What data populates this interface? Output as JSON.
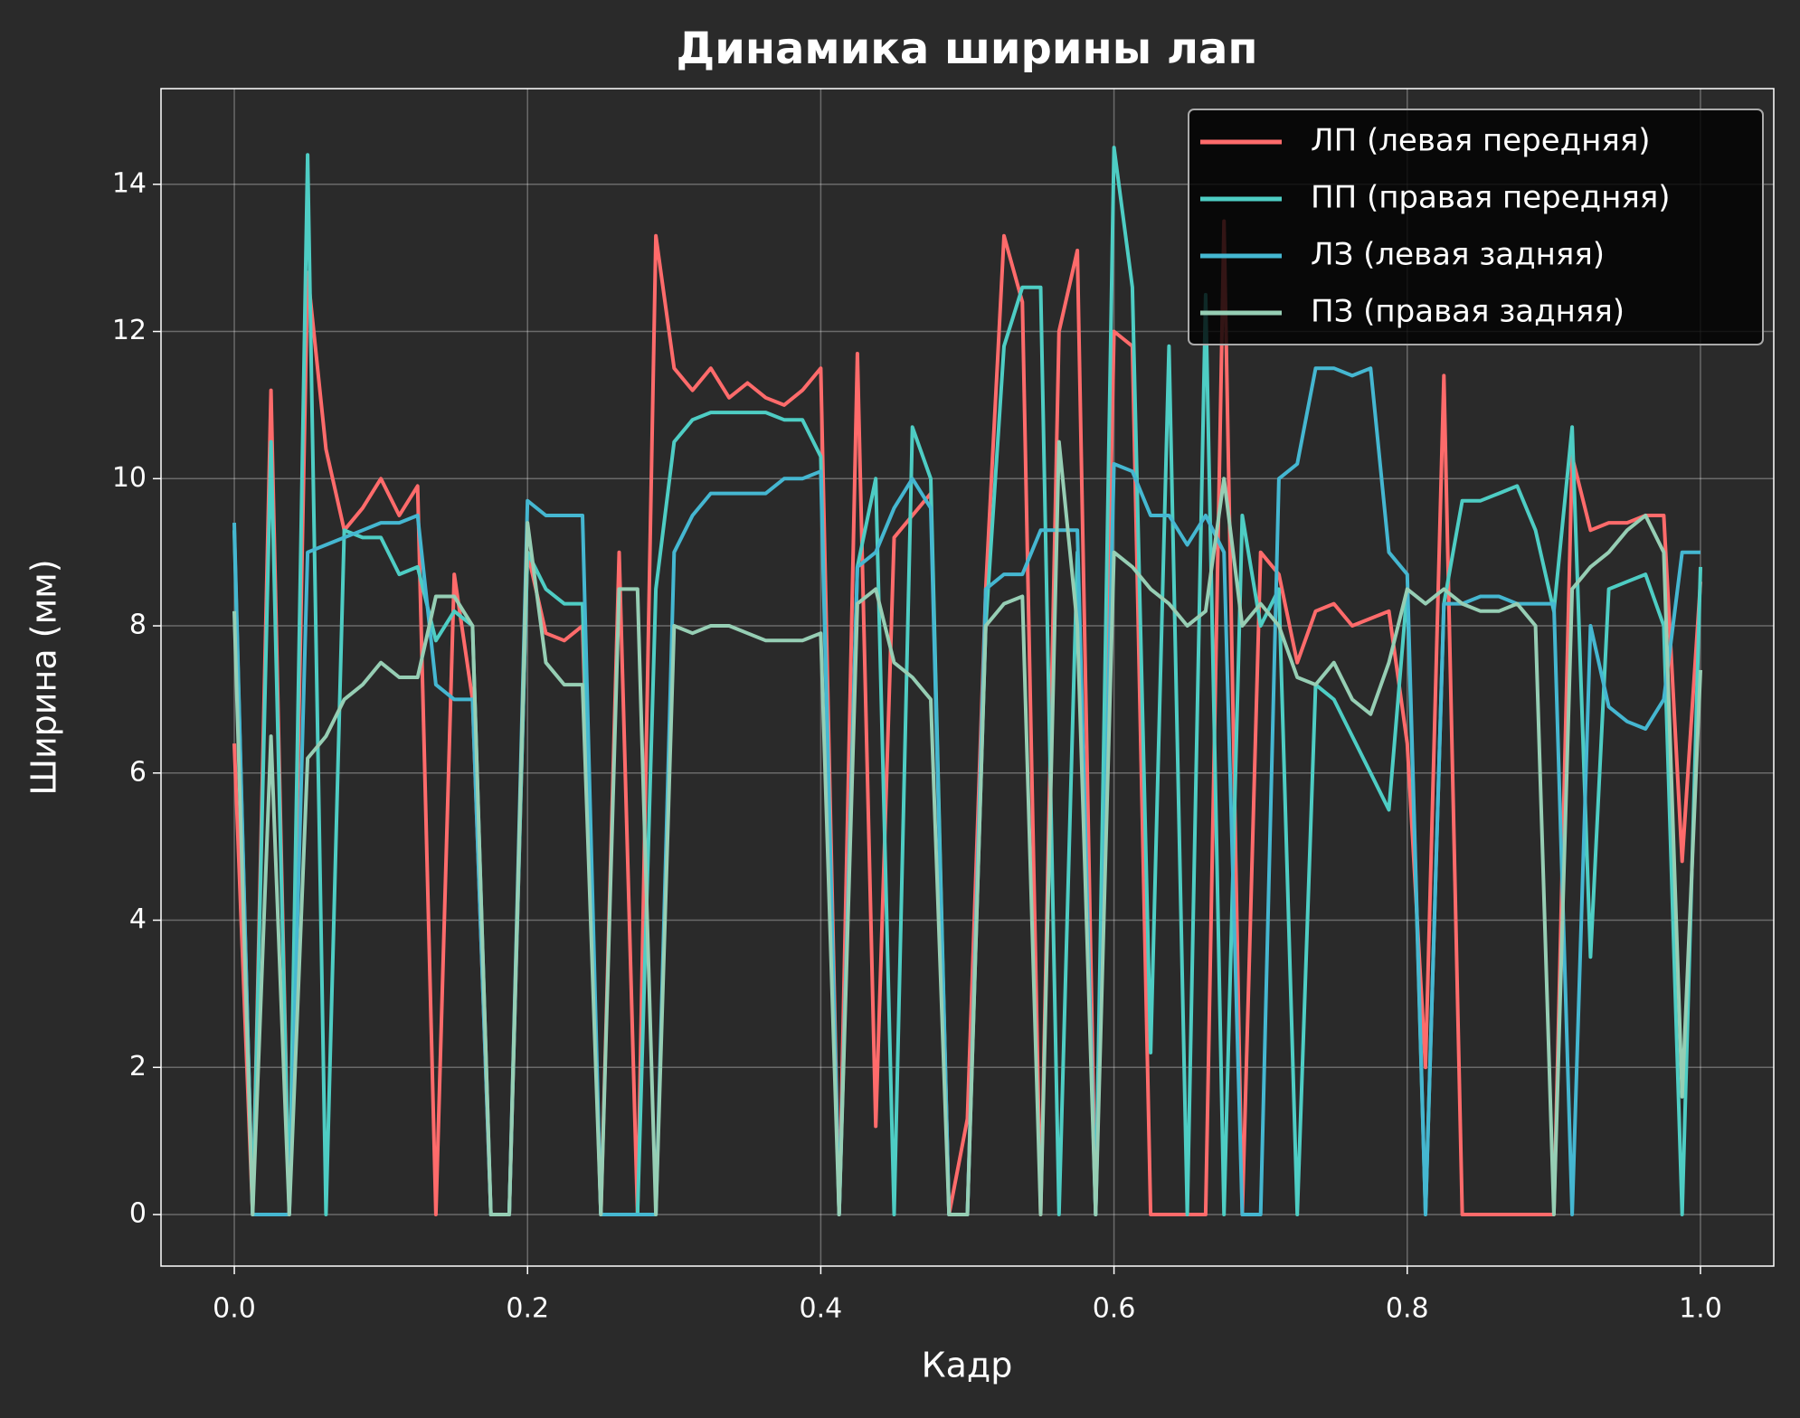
{
  "chart_data": {
    "type": "line",
    "title": "Динамика ширины лап",
    "xlabel": "Кадр",
    "ylabel": "Ширина (мм)",
    "x": [
      0,
      0.0125,
      0.025,
      0.0375,
      0.05,
      0.0625,
      0.075,
      0.0875,
      0.1,
      0.1125,
      0.125,
      0.1375,
      0.15,
      0.1625,
      0.175,
      0.1875,
      0.2,
      0.2125,
      0.225,
      0.2375,
      0.25,
      0.2625,
      0.275,
      0.2875,
      0.3,
      0.3125,
      0.325,
      0.3375,
      0.35,
      0.3625,
      0.375,
      0.3875,
      0.4,
      0.4125,
      0.425,
      0.4375,
      0.45,
      0.4625,
      0.475,
      0.4875,
      0.5,
      0.5125,
      0.525,
      0.5375,
      0.55,
      0.5625,
      0.575,
      0.5875,
      0.6,
      0.6125,
      0.625,
      0.6375,
      0.65,
      0.6625,
      0.675,
      0.6875,
      0.7,
      0.7125,
      0.725,
      0.7375,
      0.75,
      0.7625,
      0.775,
      0.7875,
      0.8,
      0.8125,
      0.825,
      0.8375,
      0.85,
      0.8625,
      0.875,
      0.8875,
      0.9,
      0.9125,
      0.925,
      0.9375,
      0.95,
      0.9625,
      0.975,
      0.9875,
      1.0
    ],
    "series": [
      {
        "name": "ЛП (левая передняя)",
        "color": "#ff6b6b",
        "values": [
          6.4,
          0,
          11.2,
          0,
          12.8,
          10.4,
          9.3,
          9.6,
          10,
          9.5,
          9.9,
          0,
          8.7,
          7,
          0,
          0,
          9,
          7.9,
          7.8,
          8,
          0,
          9,
          0,
          13.3,
          11.5,
          11.2,
          11.5,
          11.1,
          11.3,
          11.1,
          11,
          11.2,
          11.5,
          0,
          11.7,
          1.2,
          9.2,
          9.5,
          9.8,
          0,
          1.3,
          8.5,
          13.3,
          12.4,
          0,
          12,
          13.1,
          0,
          12,
          11.8,
          0,
          0,
          0,
          0,
          13.5,
          0,
          9,
          8.7,
          7.5,
          8.2,
          8.3,
          8,
          8.1,
          8.2,
          6.4,
          2,
          11.4,
          0,
          0,
          0,
          0,
          0,
          0,
          10.3,
          9.3,
          9.4,
          9.4,
          9.5,
          9.5,
          4.8,
          8.6
        ]
      },
      {
        "name": "ПП (правая передняя)",
        "color": "#4ecdc4",
        "values": [
          9.3,
          0,
          10.5,
          0,
          14.4,
          0,
          9.3,
          9.2,
          9.2,
          8.7,
          8.8,
          7.8,
          8.2,
          8,
          0,
          0,
          9,
          8.5,
          8.3,
          8.3,
          0,
          0,
          0,
          8.5,
          10.5,
          10.8,
          10.9,
          10.9,
          10.9,
          10.9,
          10.8,
          10.8,
          10.3,
          0,
          8.8,
          10,
          0,
          10.7,
          10,
          0,
          0,
          8,
          11.8,
          12.6,
          12.6,
          0,
          9,
          0,
          14.5,
          12.6,
          2.2,
          11.8,
          0,
          12.5,
          0,
          9.5,
          8,
          8.5,
          0,
          7.2,
          7,
          6.5,
          6,
          5.5,
          8.5,
          0,
          8.3,
          9.7,
          9.7,
          9.8,
          9.9,
          9.3,
          8.2,
          10.7,
          3.5,
          8.5,
          8.6,
          8.7,
          8,
          0,
          8.8
        ]
      },
      {
        "name": "ЛЗ (левая задняя)",
        "color": "#45b7d1",
        "values": [
          9.4,
          0,
          0,
          0,
          9,
          9.1,
          9.2,
          9.3,
          9.4,
          9.4,
          9.5,
          7.2,
          7,
          7,
          0,
          0,
          9.7,
          9.5,
          9.5,
          9.5,
          0,
          0,
          0,
          0,
          9,
          9.5,
          9.8,
          9.8,
          9.8,
          9.8,
          10,
          10,
          10.1,
          0,
          8.8,
          9,
          9.6,
          10,
          9.6,
          0,
          0,
          8.5,
          8.7,
          8.7,
          9.3,
          9.3,
          9.3,
          0,
          10.2,
          10.1,
          9.5,
          9.5,
          9.1,
          9.5,
          9,
          0,
          0,
          10,
          10.2,
          11.5,
          11.5,
          11.4,
          11.5,
          9,
          8.7,
          0,
          8.3,
          8.3,
          8.4,
          8.4,
          8.3,
          8.3,
          8.3,
          0,
          8,
          6.9,
          6.7,
          6.6,
          7,
          9,
          9
        ]
      },
      {
        "name": "ПЗ (правая задняя)",
        "color": "#96ceb4",
        "values": [
          8.2,
          0,
          6.5,
          0,
          6.2,
          6.5,
          7,
          7.2,
          7.5,
          7.3,
          7.3,
          8.4,
          8.4,
          8,
          0,
          0,
          9.4,
          7.5,
          7.2,
          7.2,
          0,
          8.5,
          8.5,
          0,
          8,
          7.9,
          8,
          8,
          7.9,
          7.8,
          7.8,
          7.8,
          7.9,
          0,
          8.3,
          8.5,
          7.5,
          7.3,
          7,
          0,
          0,
          8,
          8.3,
          8.4,
          0,
          10.5,
          8,
          0,
          9,
          8.8,
          8.5,
          8.3,
          8,
          8.2,
          10,
          8,
          8.3,
          8,
          7.3,
          7.2,
          7.5,
          7,
          6.8,
          7.5,
          8.5,
          8.3,
          8.5,
          8.3,
          8.2,
          8.2,
          8.3,
          8,
          0,
          8.5,
          8.8,
          9,
          9.3,
          9.5,
          9,
          1.6,
          7.4
        ]
      }
    ],
    "xlim": [
      -0.05,
      1.05
    ],
    "ylim": [
      -0.7,
      15.3
    ],
    "xticks": [
      {
        "value": 0,
        "label": "0.0"
      },
      0.2,
      0.4,
      0.6,
      0.8,
      {
        "value": 1,
        "label": "1.0"
      }
    ],
    "yticks": [
      0,
      2,
      4,
      6,
      8,
      10,
      12,
      14
    ],
    "grid": true,
    "legend": "upper right"
  }
}
